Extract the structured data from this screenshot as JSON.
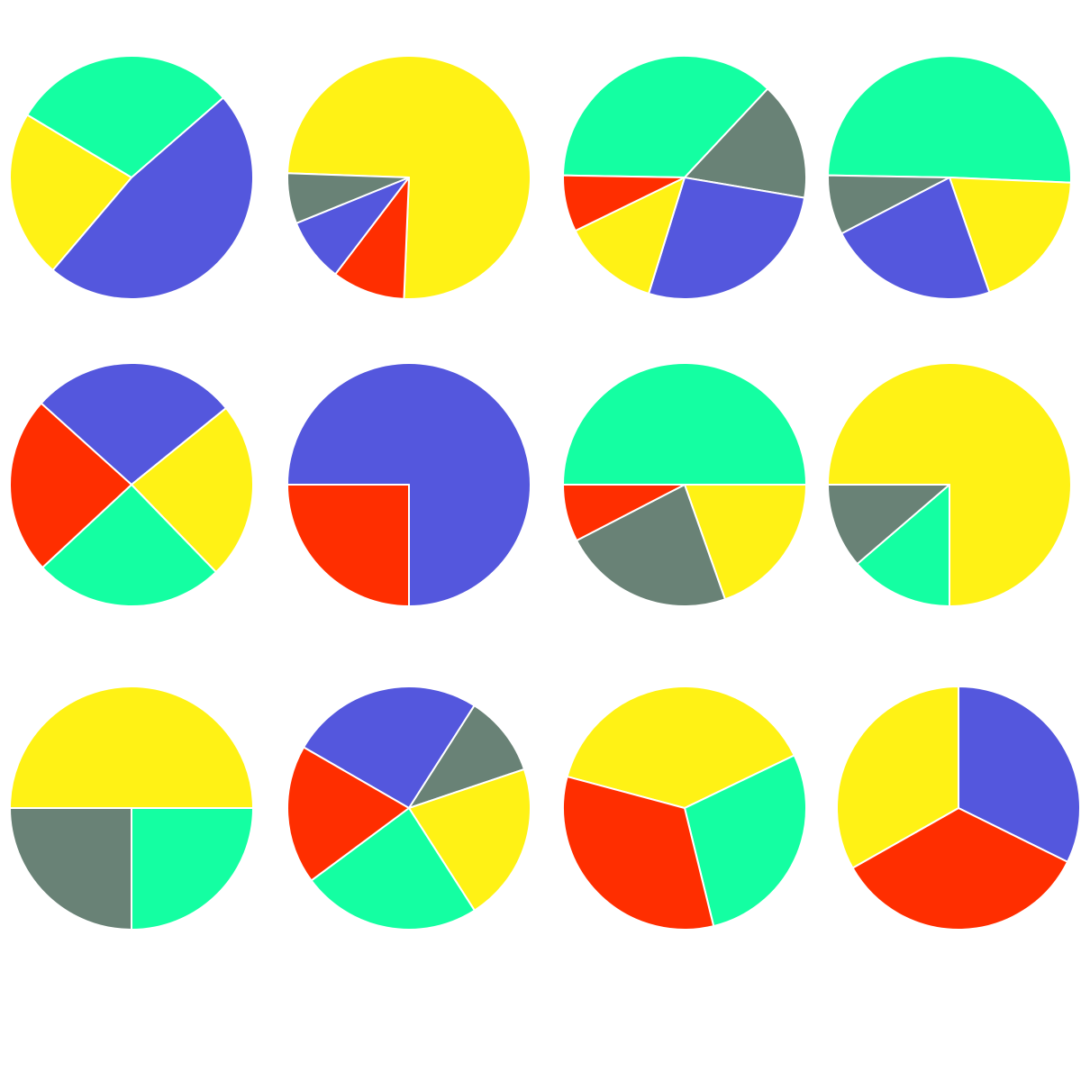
{
  "colors": {
    "blue": "#5457DD",
    "yellow": "#FFF215",
    "green": "#14FFA2",
    "gray": "#698276",
    "red": "#FF2E00"
  },
  "chart_data": [
    {
      "type": "pie",
      "slices": [
        {
          "color": "blue",
          "value": 47.6
        },
        {
          "color": "yellow",
          "value": 22.4
        },
        {
          "color": "green",
          "value": 30.0
        }
      ]
    },
    {
      "type": "pie",
      "slices": [
        {
          "color": "yellow",
          "value": 75.1
        },
        {
          "color": "red",
          "value": 9.7
        },
        {
          "color": "blue",
          "value": 8.5
        },
        {
          "color": "gray",
          "value": 6.7
        }
      ]
    },
    {
      "type": "pie",
      "slices": [
        {
          "color": "green",
          "value": 36.7
        },
        {
          "color": "gray",
          "value": 15.7
        },
        {
          "color": "blue",
          "value": 27.1
        },
        {
          "color": "yellow",
          "value": 13.0
        },
        {
          "color": "red",
          "value": 7.5
        }
      ]
    },
    {
      "type": "pie",
      "slices": [
        {
          "color": "green",
          "value": 50.4
        },
        {
          "color": "yellow",
          "value": 19.0
        },
        {
          "color": "blue",
          "value": 22.7
        },
        {
          "color": "gray",
          "value": 7.9
        }
      ]
    },
    {
      "type": "pie",
      "slices": [
        {
          "color": "blue",
          "value": 27.5
        },
        {
          "color": "yellow",
          "value": 23.6
        },
        {
          "color": "green",
          "value": 25.3
        },
        {
          "color": "red",
          "value": 23.6
        }
      ]
    },
    {
      "type": "pie",
      "slices": [
        {
          "color": "blue",
          "value": 75.0
        },
        {
          "color": "red",
          "value": 25.0
        }
      ]
    },
    {
      "type": "pie",
      "slices": [
        {
          "color": "green",
          "value": 50.0
        },
        {
          "color": "yellow",
          "value": 19.6
        },
        {
          "color": "gray",
          "value": 22.8
        },
        {
          "color": "red",
          "value": 7.6
        }
      ]
    },
    {
      "type": "pie",
      "slices": [
        {
          "color": "yellow",
          "value": 75.0
        },
        {
          "color": "green",
          "value": 13.7
        },
        {
          "color": "gray",
          "value": 11.3
        }
      ]
    },
    {
      "type": "pie",
      "slices": [
        {
          "color": "yellow",
          "value": 50.0
        },
        {
          "color": "green",
          "value": 25.0
        },
        {
          "color": "gray",
          "value": 25.0
        }
      ]
    },
    {
      "type": "pie",
      "slices": [
        {
          "color": "blue",
          "value": 25.7
        },
        {
          "color": "gray",
          "value": 10.8
        },
        {
          "color": "yellow",
          "value": 21.1
        },
        {
          "color": "green",
          "value": 23.9
        },
        {
          "color": "red",
          "value": 18.5
        }
      ]
    },
    {
      "type": "pie",
      "slices": [
        {
          "color": "yellow",
          "value": 38.7
        },
        {
          "color": "green",
          "value": 28.3
        },
        {
          "color": "red",
          "value": 33.0
        }
      ]
    },
    {
      "type": "pie",
      "slices": [
        {
          "color": "blue",
          "value": 32.3
        },
        {
          "color": "red",
          "value": 34.5
        },
        {
          "color": "yellow",
          "value": 33.2
        }
      ]
    }
  ]
}
